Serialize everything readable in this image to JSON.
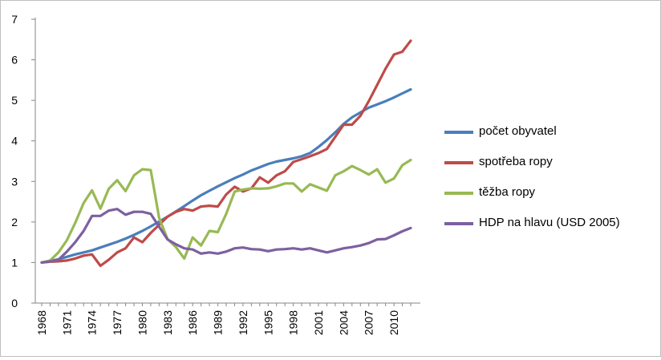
{
  "chart_data": {
    "type": "line",
    "title": "",
    "xlabel": "",
    "ylabel": "",
    "ylim": [
      0,
      7
    ],
    "yticks": [
      "0",
      "1",
      "2",
      "3",
      "4",
      "5",
      "6",
      "7"
    ],
    "x": [
      1968,
      1969,
      1970,
      1971,
      1972,
      1973,
      1974,
      1975,
      1976,
      1977,
      1978,
      1979,
      1980,
      1981,
      1982,
      1983,
      1984,
      1985,
      1986,
      1987,
      1988,
      1989,
      1990,
      1991,
      1992,
      1993,
      1994,
      1995,
      1996,
      1997,
      1998,
      1999,
      2000,
      2001,
      2002,
      2003,
      2004,
      2005,
      2006,
      2007,
      2008,
      2009,
      2010,
      2011,
      2012
    ],
    "xtick_labels": [
      "1968",
      "1971",
      "1974",
      "1977",
      "1980",
      "1983",
      "1986",
      "1989",
      "1992",
      "1995",
      "1998",
      "2001",
      "2004",
      "2007",
      "2010"
    ],
    "legend_position": "right",
    "series": [
      {
        "name": "počet obyvatel",
        "color": "#4a7ebb",
        "values": [
          1.0,
          1.04,
          1.08,
          1.14,
          1.2,
          1.25,
          1.3,
          1.37,
          1.44,
          1.51,
          1.59,
          1.68,
          1.78,
          1.89,
          2.01,
          2.13,
          2.26,
          2.39,
          2.53,
          2.66,
          2.77,
          2.88,
          2.98,
          3.08,
          3.17,
          3.27,
          3.35,
          3.43,
          3.49,
          3.53,
          3.57,
          3.62,
          3.7,
          3.85,
          4.02,
          4.21,
          4.42,
          4.58,
          4.7,
          4.82,
          4.9,
          4.98,
          5.07,
          5.17,
          5.27
        ]
      },
      {
        "name": "spotřeba ropy",
        "color": "#be4b48",
        "values": [
          1.0,
          1.02,
          1.03,
          1.05,
          1.1,
          1.17,
          1.2,
          0.92,
          1.07,
          1.25,
          1.35,
          1.62,
          1.5,
          1.73,
          1.93,
          2.13,
          2.25,
          2.32,
          2.28,
          2.38,
          2.4,
          2.38,
          2.68,
          2.87,
          2.75,
          2.83,
          3.1,
          2.97,
          3.15,
          3.25,
          3.48,
          3.55,
          3.62,
          3.7,
          3.8,
          4.1,
          4.4,
          4.4,
          4.62,
          4.98,
          5.38,
          5.78,
          6.13,
          6.2,
          6.47
        ]
      },
      {
        "name": "těžba ropy",
        "color": "#98b954",
        "values": [
          1.0,
          1.05,
          1.25,
          1.55,
          1.98,
          2.47,
          2.78,
          2.33,
          2.82,
          3.03,
          2.76,
          3.15,
          3.3,
          3.28,
          2.1,
          1.58,
          1.38,
          1.1,
          1.62,
          1.42,
          1.78,
          1.75,
          2.2,
          2.75,
          2.8,
          2.83,
          2.82,
          2.83,
          2.88,
          2.95,
          2.95,
          2.75,
          2.93,
          2.85,
          2.77,
          3.15,
          3.25,
          3.38,
          3.28,
          3.17,
          3.3,
          2.97,
          3.07,
          3.4,
          3.53
        ]
      },
      {
        "name": "HDP na hlavu (USD 2005)",
        "color": "#7d60a0",
        "values": [
          1.0,
          1.03,
          1.07,
          1.27,
          1.5,
          1.78,
          2.15,
          2.15,
          2.28,
          2.32,
          2.18,
          2.25,
          2.25,
          2.2,
          1.88,
          1.57,
          1.45,
          1.35,
          1.32,
          1.22,
          1.25,
          1.22,
          1.27,
          1.35,
          1.37,
          1.33,
          1.32,
          1.28,
          1.32,
          1.33,
          1.35,
          1.32,
          1.35,
          1.3,
          1.25,
          1.3,
          1.35,
          1.38,
          1.42,
          1.48,
          1.57,
          1.58,
          1.67,
          1.77,
          1.85
        ]
      }
    ]
  }
}
